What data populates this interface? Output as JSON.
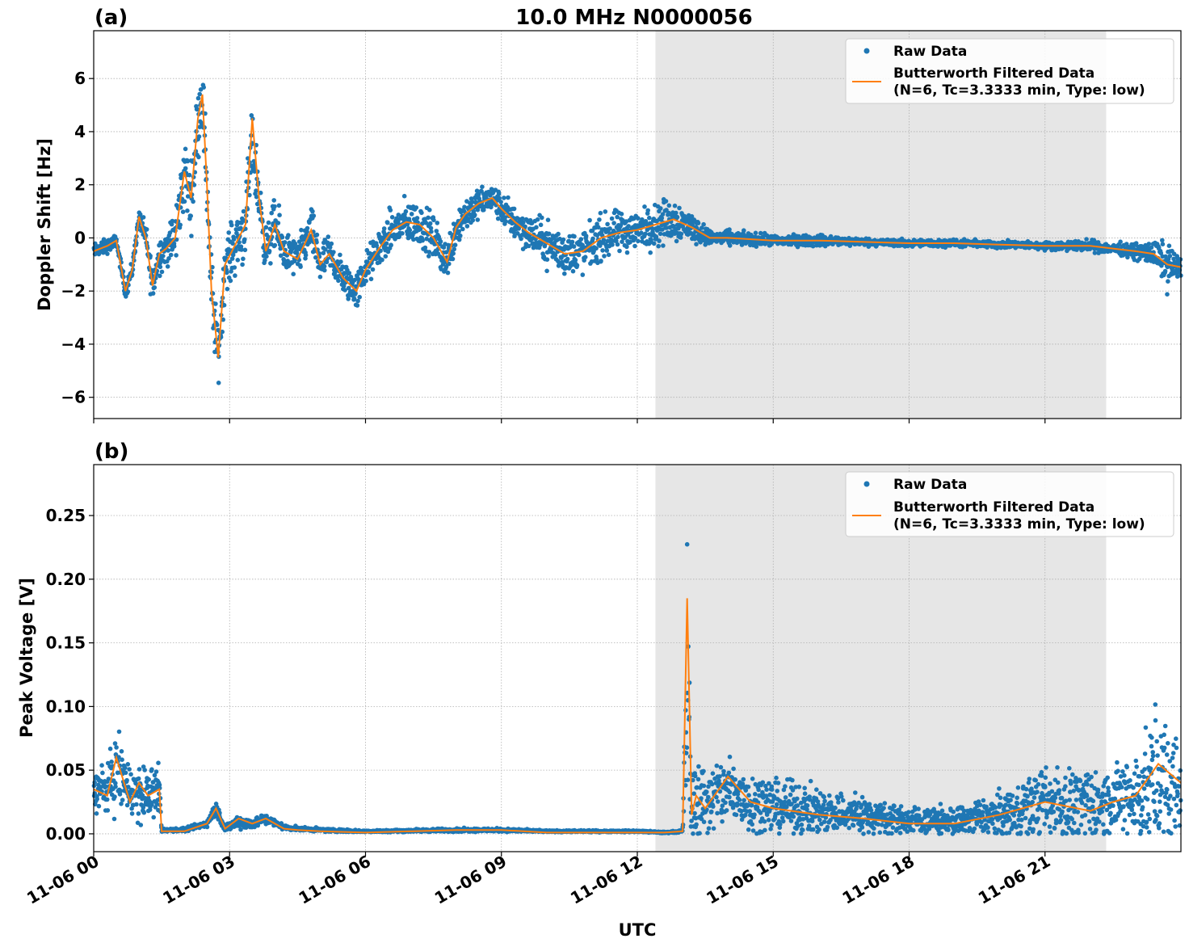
{
  "figure": {
    "title": "10.0 MHz N0000056",
    "xlabel": "UTC",
    "shaded_interval": {
      "start_hour": 12.4,
      "end_hour": 22.35
    },
    "colors": {
      "raw": "#1f77b4",
      "filtered": "#ff7f0e",
      "shade": "#e6e6e6",
      "grid": "#b0b0b0"
    }
  },
  "chart_data": [
    {
      "type": "scatter",
      "panel_label": "(a)",
      "ylabel": "Doppler Shift [Hz]",
      "xlim_hours": [
        0,
        24
      ],
      "ylim": [
        -6.8,
        7.8
      ],
      "yticks": [
        6,
        4,
        2,
        0,
        -2,
        -4,
        -6
      ],
      "ytick_labels": [
        "6",
        "4",
        "2",
        "0",
        "−2",
        "−4",
        "−6"
      ],
      "legend": {
        "position": "upper right",
        "entries": [
          "Raw Data",
          "Butterworth Filtered Data",
          "(N=6, Tc=3.3333 min, Type: low)"
        ]
      },
      "series": [
        {
          "name": "Raw Data",
          "style": "points",
          "x_hours": [
            0,
            0.3,
            0.5,
            0.7,
            0.85,
            1.0,
            1.15,
            1.3,
            1.45,
            1.6,
            1.8,
            2.0,
            2.15,
            2.3,
            2.4,
            2.5,
            2.6,
            2.75,
            2.9,
            3.05,
            3.2,
            3.35,
            3.5,
            3.65,
            3.8,
            4.0,
            4.2,
            4.5,
            4.8,
            5.0,
            5.2,
            5.5,
            5.8,
            6.0,
            6.3,
            6.6,
            6.9,
            7.2,
            7.5,
            7.8,
            8.0,
            8.2,
            8.5,
            8.8,
            9.0,
            9.3,
            9.6,
            10.0,
            10.4,
            10.8,
            11.2,
            11.6,
            12.0,
            12.4,
            12.8,
            13.2,
            13.6,
            14.0,
            15.0,
            16.0,
            17.0,
            18.0,
            19.0,
            20.0,
            21.0,
            22.0,
            22.5,
            23.0,
            23.4,
            23.7,
            24.0
          ],
          "y_center": [
            -0.5,
            -0.3,
            -0.1,
            -2.0,
            -1.2,
            0.8,
            0.0,
            -1.8,
            -0.6,
            -0.4,
            0.0,
            2.5,
            1.5,
            4.5,
            5.5,
            2.0,
            -2.0,
            -4.5,
            -1.0,
            -0.5,
            0.0,
            0.5,
            3.5,
            1.5,
            -0.5,
            0.5,
            -0.5,
            -0.8,
            0.3,
            -1.0,
            -0.6,
            -1.5,
            -2.0,
            -1.2,
            -0.4,
            0.3,
            0.6,
            0.5,
            0.0,
            -0.9,
            0.4,
            0.9,
            1.3,
            1.5,
            1.1,
            0.6,
            0.2,
            -0.2,
            -0.6,
            -0.5,
            0.0,
            0.2,
            0.3,
            0.5,
            0.7,
            0.4,
            0.0,
            0.0,
            -0.1,
            -0.1,
            -0.15,
            -0.2,
            -0.2,
            -0.25,
            -0.3,
            -0.3,
            -0.4,
            -0.5,
            -0.6,
            -1.0,
            -1.1
          ],
          "y_spread": [
            0.4,
            0.4,
            0.3,
            0.4,
            0.6,
            0.3,
            0.8,
            1.2,
            1.0,
            1.0,
            1.5,
            2.0,
            1.8,
            2.0,
            2.0,
            2.0,
            2.0,
            1.5,
            1.5,
            1.5,
            1.8,
            1.8,
            2.0,
            1.5,
            1.2,
            1.5,
            1.2,
            1.0,
            1.2,
            1.2,
            1.0,
            1.0,
            1.0,
            1.0,
            1.0,
            1.2,
            1.2,
            1.2,
            1.2,
            1.0,
            1.2,
            1.0,
            0.8,
            0.8,
            0.8,
            1.0,
            1.0,
            1.2,
            1.2,
            1.2,
            1.2,
            1.2,
            1.0,
            1.2,
            1.2,
            0.8,
            0.4,
            0.4,
            0.3,
            0.3,
            0.2,
            0.2,
            0.2,
            0.2,
            0.2,
            0.3,
            0.3,
            0.4,
            0.7,
            1.2,
            0.5
          ]
        },
        {
          "name": "Butterworth Filtered Data",
          "style": "line",
          "x_hours": [
            0,
            0.3,
            0.5,
            0.7,
            0.85,
            1.0,
            1.15,
            1.3,
            1.45,
            1.6,
            1.8,
            2.0,
            2.15,
            2.3,
            2.4,
            2.5,
            2.6,
            2.75,
            2.9,
            3.05,
            3.2,
            3.35,
            3.5,
            3.65,
            3.8,
            4.0,
            4.2,
            4.5,
            4.8,
            5.0,
            5.2,
            5.5,
            5.8,
            6.0,
            6.3,
            6.6,
            6.9,
            7.2,
            7.5,
            7.8,
            8.0,
            8.2,
            8.5,
            8.8,
            9.0,
            9.3,
            9.6,
            10.0,
            10.4,
            10.8,
            11.2,
            11.6,
            12.0,
            12.4,
            12.8,
            13.2,
            13.6,
            14.0,
            15.0,
            16.0,
            17.0,
            18.0,
            19.0,
            20.0,
            21.0,
            22.0,
            22.5,
            23.0,
            23.4,
            23.7,
            24.0
          ],
          "y": [
            -0.5,
            -0.3,
            -0.1,
            -2.0,
            -1.2,
            0.8,
            0.0,
            -1.8,
            -0.6,
            -0.4,
            0.0,
            2.5,
            1.5,
            4.5,
            5.4,
            2.0,
            -2.0,
            -4.5,
            -1.0,
            -0.5,
            0.0,
            0.5,
            4.5,
            1.5,
            -0.5,
            0.5,
            -0.5,
            -0.8,
            0.3,
            -1.0,
            -0.6,
            -1.5,
            -2.0,
            -1.2,
            -0.4,
            0.3,
            0.6,
            0.5,
            0.0,
            -0.9,
            0.4,
            0.9,
            1.3,
            1.5,
            1.1,
            0.6,
            0.2,
            -0.2,
            -0.6,
            -0.5,
            0.0,
            0.2,
            0.3,
            0.5,
            0.7,
            0.4,
            0.0,
            0.0,
            -0.1,
            -0.1,
            -0.15,
            -0.2,
            -0.2,
            -0.25,
            -0.3,
            -0.3,
            -0.4,
            -0.5,
            -0.6,
            -1.0,
            -1.1
          ]
        }
      ]
    },
    {
      "type": "scatter",
      "panel_label": "(b)",
      "ylabel": "Peak Voltage [V]",
      "xlim_hours": [
        0,
        24
      ],
      "ylim": [
        -0.014,
        0.29
      ],
      "yticks": [
        0.25,
        0.2,
        0.15,
        0.1,
        0.05,
        0.0
      ],
      "ytick_labels": [
        "0.25",
        "0.20",
        "0.15",
        "0.10",
        "0.05",
        "0.00"
      ],
      "xtick_hours": [
        0,
        3,
        6,
        9,
        12,
        15,
        18,
        21
      ],
      "xtick_labels": [
        "11-06 00",
        "11-06 03",
        "11-06 06",
        "11-06 09",
        "11-06 12",
        "11-06 15",
        "11-06 18",
        "11-06 21"
      ],
      "legend": {
        "position": "upper right",
        "entries": [
          "Raw Data",
          "Butterworth Filtered Data",
          "(N=6, Tc=3.3333 min, Type: low)"
        ]
      },
      "series": [
        {
          "name": "Raw Data",
          "style": "points",
          "x_hours": [
            0,
            0.3,
            0.5,
            0.8,
            1.0,
            1.2,
            1.45,
            1.5,
            2.0,
            2.5,
            2.7,
            2.9,
            3.2,
            3.5,
            3.8,
            4.2,
            4.5,
            5.0,
            6.0,
            8.0,
            9.0,
            10.0,
            11.0,
            12.0,
            12.6,
            13.0,
            13.1,
            13.2,
            13.3,
            13.5,
            14.0,
            14.5,
            15.0,
            16.0,
            17.0,
            18.0,
            19.0,
            20.0,
            21.0,
            22.0,
            22.5,
            23.0,
            23.5,
            24.0
          ],
          "y_center": [
            0.035,
            0.035,
            0.05,
            0.035,
            0.03,
            0.03,
            0.035,
            0.003,
            0.003,
            0.008,
            0.02,
            0.004,
            0.01,
            0.008,
            0.012,
            0.005,
            0.004,
            0.003,
            0.002,
            0.003,
            0.003,
            0.002,
            0.002,
            0.002,
            0.001,
            0.002,
            0.12,
            0.02,
            0.03,
            0.025,
            0.035,
            0.025,
            0.022,
            0.018,
            0.015,
            0.01,
            0.01,
            0.015,
            0.025,
            0.022,
            0.025,
            0.03,
            0.04,
            0.035
          ],
          "y_spread": [
            0.025,
            0.03,
            0.04,
            0.03,
            0.035,
            0.03,
            0.03,
            0.002,
            0.002,
            0.004,
            0.01,
            0.003,
            0.008,
            0.006,
            0.006,
            0.003,
            0.002,
            0.002,
            0.001,
            0.002,
            0.002,
            0.001,
            0.001,
            0.001,
            0.001,
            0.001,
            0.15,
            0.04,
            0.045,
            0.04,
            0.04,
            0.035,
            0.03,
            0.025,
            0.022,
            0.015,
            0.015,
            0.025,
            0.04,
            0.04,
            0.04,
            0.05,
            0.08,
            0.06
          ]
        },
        {
          "name": "Butterworth Filtered Data",
          "style": "line",
          "x_hours": [
            0,
            0.3,
            0.5,
            0.8,
            1.0,
            1.2,
            1.45,
            1.5,
            2.0,
            2.5,
            2.7,
            2.9,
            3.2,
            3.5,
            3.8,
            4.2,
            4.5,
            5.0,
            6.0,
            8.0,
            9.0,
            10.0,
            11.0,
            12.0,
            12.6,
            13.0,
            13.1,
            13.2,
            13.3,
            13.5,
            14.0,
            14.5,
            15.0,
            16.0,
            17.0,
            18.0,
            19.0,
            20.0,
            21.0,
            22.0,
            22.5,
            23.0,
            23.5,
            24.0
          ],
          "y": [
            0.035,
            0.03,
            0.06,
            0.025,
            0.04,
            0.03,
            0.035,
            0.002,
            0.002,
            0.008,
            0.02,
            0.004,
            0.012,
            0.008,
            0.012,
            0.004,
            0.003,
            0.002,
            0.001,
            0.003,
            0.003,
            0.001,
            0.001,
            0.001,
            0.001,
            0.002,
            0.185,
            0.015,
            0.03,
            0.02,
            0.045,
            0.025,
            0.02,
            0.015,
            0.012,
            0.008,
            0.008,
            0.015,
            0.025,
            0.018,
            0.025,
            0.03,
            0.055,
            0.04
          ]
        }
      ]
    }
  ]
}
